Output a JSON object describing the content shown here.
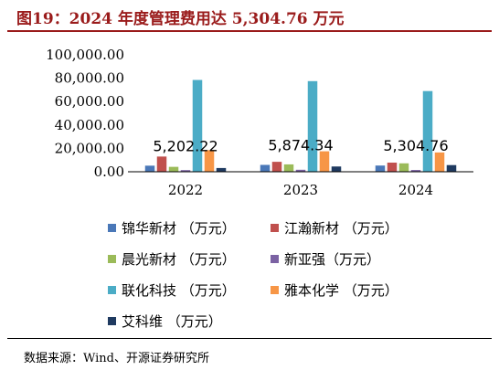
{
  "title": "图19：2024 年度管理费用达 5,304.76 万元",
  "source": "数据来源：Wind、开源证券研究所",
  "colors": {
    "title": "#9a1b1b",
    "series": [
      "#4a78b8",
      "#c0504d",
      "#9bbb59",
      "#7b62a3",
      "#4bacc6",
      "#f79646",
      "#1f3a60"
    ]
  },
  "chart_data": {
    "type": "bar",
    "categories": [
      "2022",
      "2023",
      "2024"
    ],
    "ylim": [
      0,
      100000
    ],
    "yticks": [
      0,
      20000,
      40000,
      60000,
      80000,
      100000
    ],
    "ytick_labels": [
      "0.00",
      "20,000.00",
      "40,000.00",
      "60,000.00",
      "80,000.00",
      "100,000.00"
    ],
    "grid": false,
    "legend_position": "bottom",
    "series": [
      {
        "name": "锦华新材 （万元）",
        "values": [
          5202.22,
          5874.34,
          5304.76
        ]
      },
      {
        "name": "江瀚新材 （万元）",
        "values": [
          13000,
          8500,
          7800
        ]
      },
      {
        "name": "晨光新材 （万元）",
        "values": [
          4200,
          6300,
          7200
        ]
      },
      {
        "name": "新亚强（万元）",
        "values": [
          1400,
          1700,
          1500
        ]
      },
      {
        "name": "联化科技 （万元）",
        "values": [
          78500,
          77500,
          69000
        ]
      },
      {
        "name": "雅本化学 （万元）",
        "values": [
          18500,
          17500,
          16500
        ]
      },
      {
        "name": "艾科维 （万元）",
        "values": [
          3200,
          4500,
          5700
        ]
      }
    ],
    "data_labels": [
      "5,202.22",
      "5,874.34",
      "5,304.76"
    ]
  }
}
